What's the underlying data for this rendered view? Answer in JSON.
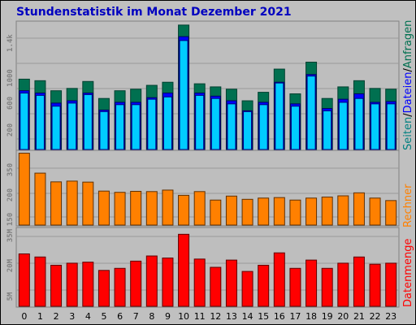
{
  "title": "Stundenstatistik im Monat Dezember 2021",
  "colors": {
    "background": "#c0c0c0",
    "plot": "#bebebe",
    "seiten": "#008080",
    "dateien": "#00ccff",
    "anfragen": "#007050",
    "rechner": "#ff8000",
    "datenmenge": "#ff0000",
    "title": "#0000c0"
  },
  "chart_data": [
    {
      "type": "bar",
      "panel": "top",
      "categories": [
        "0",
        "1",
        "2",
        "3",
        "4",
        "5",
        "6",
        "7",
        "8",
        "9",
        "10",
        "11",
        "12",
        "13",
        "14",
        "15",
        "16",
        "17",
        "18",
        "19",
        "20",
        "21",
        "22",
        "23"
      ],
      "yticks": [
        "200",
        "600",
        "1000",
        "1.4k"
      ],
      "ylim": [
        0,
        1630
      ],
      "grid": true,
      "legend": {
        "position": "right",
        "entries": [
          {
            "label": "Seiten",
            "color": "#008080"
          },
          {
            "label": "Dateien",
            "color": "#0000ff"
          },
          {
            "label": "Anfragen",
            "color": "#007050"
          }
        ]
      },
      "series": [
        {
          "name": "Anfragen",
          "values": [
            900,
            880,
            750,
            780,
            870,
            650,
            750,
            770,
            820,
            860,
            1600,
            840,
            800,
            770,
            620,
            730,
            1030,
            710,
            1120,
            650,
            800,
            880,
            780,
            770
          ]
        },
        {
          "name": "Seiten",
          "values": [
            750,
            720,
            590,
            620,
            720,
            500,
            600,
            600,
            660,
            720,
            1450,
            720,
            680,
            620,
            490,
            600,
            860,
            580,
            960,
            520,
            640,
            710,
            600,
            610
          ]
        },
        {
          "name": "Dateien",
          "values": [
            720,
            690,
            550,
            590,
            700,
            480,
            570,
            570,
            640,
            670,
            1400,
            690,
            650,
            580,
            480,
            570,
            850,
            550,
            940,
            490,
            600,
            650,
            580,
            580
          ]
        }
      ]
    },
    {
      "type": "bar",
      "panel": "middle",
      "categories": [
        "0",
        "1",
        "2",
        "3",
        "4",
        "5",
        "6",
        "7",
        "8",
        "9",
        "10",
        "11",
        "12",
        "13",
        "14",
        "15",
        "16",
        "17",
        "18",
        "19",
        "20",
        "21",
        "22",
        "23"
      ],
      "yticks": [
        "150",
        "200",
        "250",
        "350"
      ],
      "ylim": [
        100,
        390
      ],
      "grid": true,
      "legend": {
        "position": "right",
        "entries": [
          {
            "label": "Rechner",
            "color": "#ff8000"
          }
        ]
      },
      "series": [
        {
          "name": "Rechner",
          "values": [
            385,
            305,
            270,
            273,
            269,
            233,
            228,
            232,
            231,
            237,
            216,
            231,
            197,
            213,
            200,
            205,
            207,
            197,
            205,
            209,
            214,
            226,
            205,
            195
          ]
        }
      ]
    },
    {
      "type": "bar",
      "panel": "bottom",
      "categories": [
        "0",
        "1",
        "2",
        "3",
        "4",
        "5",
        "6",
        "7",
        "8",
        "9",
        "10",
        "11",
        "12",
        "13",
        "14",
        "15",
        "16",
        "17",
        "18",
        "19",
        "20",
        "21",
        "22",
        "23"
      ],
      "yticks": [
        "5M",
        "20M",
        "35M"
      ],
      "ylim": [
        0,
        37
      ],
      "grid": true,
      "legend": {
        "position": "right",
        "entries": [
          {
            "label": "Datenmenge",
            "color": "#ff0000"
          }
        ]
      },
      "series": [
        {
          "name": "Datenmenge",
          "values": [
            25,
            23.5,
            19.5,
            20.5,
            21,
            17,
            18,
            21.5,
            24,
            23,
            34.5,
            22.5,
            18.5,
            22,
            16.5,
            19.5,
            25.5,
            18,
            22,
            18,
            20.5,
            23.5,
            20,
            20.5
          ]
        }
      ]
    }
  ]
}
